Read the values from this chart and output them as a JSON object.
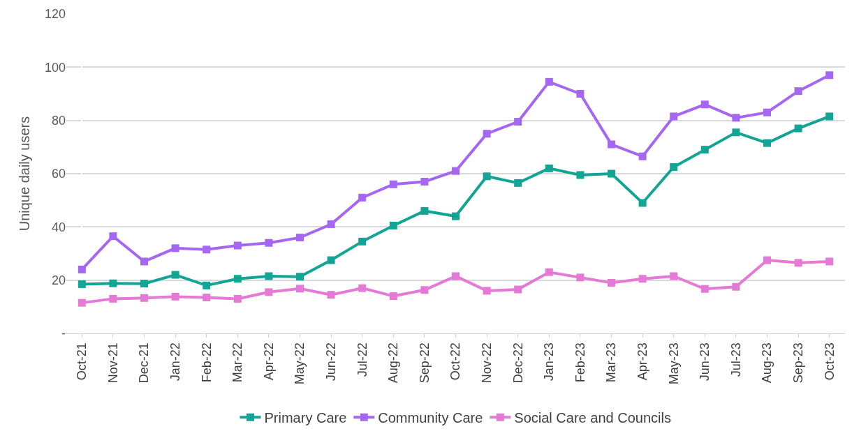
{
  "chart_data": {
    "type": "line",
    "ylabel": "Unique daily users",
    "categories": [
      "Oct-21",
      "Nov-21",
      "Dec-21",
      "Jan-22",
      "Feb-22",
      "Mar-22",
      "Apr-22",
      "May-22",
      "Jun-22",
      "Jul-22",
      "Aug-22",
      "Sep-22",
      "Oct-22",
      "Nov-22",
      "Dec-22",
      "Jan-23",
      "Feb-23",
      "Mar-23",
      "Apr-23",
      "May-23",
      "Jun-23",
      "Jul-23",
      "Aug-23",
      "Sep-23",
      "Oct-23"
    ],
    "series": [
      {
        "name": "Primary Care",
        "color": "#12a596",
        "values": [
          18.5,
          18.8,
          18.7,
          22,
          18,
          20.5,
          21.5,
          21.3,
          27.5,
          34.5,
          40.5,
          46,
          44,
          59,
          56.5,
          62,
          59.5,
          60,
          49,
          62.5,
          69,
          75.5,
          71.5,
          77,
          81.5
        ]
      },
      {
        "name": "Community Care",
        "color": "#a567f2",
        "values": [
          24,
          36.5,
          27,
          32,
          31.5,
          33,
          34,
          36,
          41,
          51,
          56,
          57,
          61,
          75,
          79.5,
          94.5,
          90,
          71,
          66.5,
          81.5,
          86,
          81,
          83,
          91,
          97
        ]
      },
      {
        "name": "Social Care and Councils",
        "color": "#e47ad6",
        "values": [
          11.5,
          13,
          13.3,
          13.8,
          13.5,
          13,
          15.5,
          16.8,
          14.5,
          17,
          14,
          16.3,
          21.5,
          16,
          16.5,
          23,
          21,
          19,
          20.5,
          21.5,
          16.7,
          17.5,
          27.5,
          26.5,
          27
        ]
      }
    ],
    "ylim": [
      0,
      120
    ],
    "yticks": [
      {
        "value": 0,
        "label": "-"
      },
      20,
      40,
      60,
      80,
      100,
      120
    ],
    "grid": "y",
    "legend": "bottom",
    "marker": "square",
    "line_style": "solid"
  }
}
